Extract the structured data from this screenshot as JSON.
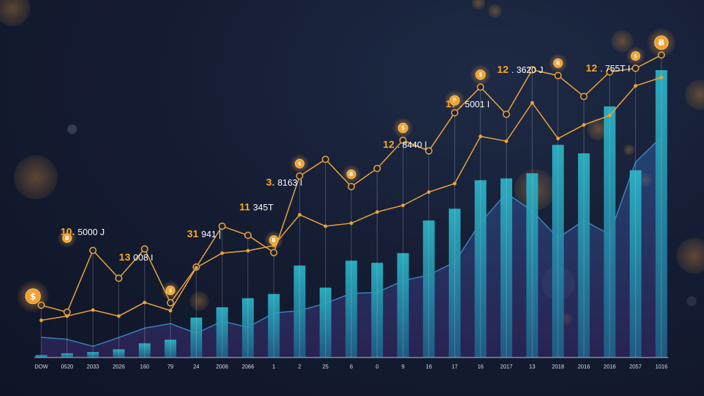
{
  "colors": {
    "background": "#141c31",
    "bar_top": "#2bb6c8",
    "bar_bottom": "#1f5f86",
    "line": "#e8a33a",
    "coin": "#f4a02a",
    "area_line": "#3d8fd0",
    "baseline": "#9aa3b5",
    "label_number": "#f6a623",
    "label_text": "#ffffff"
  },
  "icons": [
    "dollar-coin-icon",
    "bitcoin-coin-icon"
  ],
  "chart_data": {
    "type": "bar",
    "title": "",
    "xlabel": "",
    "ylabel": "",
    "grid": false,
    "legend": "none",
    "categories": [
      "DOW",
      "0520",
      "2033",
      "2026",
      "160",
      "79",
      "24",
      "2006",
      "2066",
      "1",
      "2",
      "25",
      "6",
      "0",
      "9",
      "16",
      "17",
      "16",
      "2017",
      "13",
      "2018",
      "2016",
      "2016",
      "2057",
      "1016"
    ],
    "ylim": [
      0,
      100
    ],
    "series": [
      {
        "type": "bar",
        "values": [
          0.8,
          1.4,
          1.8,
          2.7,
          4.7,
          5.9,
          13.2,
          16.6,
          19.6,
          21.0,
          30.4,
          23.1,
          32.0,
          31.3,
          34.5,
          45.3,
          49.2,
          58.6,
          59.2,
          60.9,
          70.3,
          67.5,
          83.0,
          61.9,
          95.0
        ]
      },
      {
        "type": "area",
        "values": [
          6.7,
          6.0,
          3.7,
          6.6,
          9.7,
          11.2,
          8.0,
          12.0,
          10.0,
          14.7,
          15.5,
          17.9,
          21.2,
          21.5,
          25.4,
          27.3,
          31.5,
          44.6,
          54.3,
          48.5,
          39.5,
          45.3,
          40.6,
          64.6,
          72.9
        ]
      },
      {
        "type": "line",
        "values": [
          17.3,
          15.0,
          35.4,
          26.2,
          35.9,
          18.1,
          29.9,
          43.4,
          40.4,
          34.7,
          60.0,
          65.5,
          56.5,
          62.5,
          71.8,
          68.3,
          80.9,
          89.4,
          80.4,
          95.1,
          93.2,
          86.3,
          94.4,
          95.6,
          100
        ]
      },
      {
        "type": "line",
        "values": [
          12.3,
          13.7,
          15.7,
          13.7,
          18.2,
          15.5,
          29.7,
          34.5,
          35.3,
          37.0,
          47.2,
          43.4,
          44.4,
          48.1,
          50.3,
          54.7,
          57.5,
          73.1,
          71.5,
          84.2,
          72.4,
          76.9,
          80.0,
          89.8,
          92.6
        ]
      }
    ],
    "annotations": [
      {
        "category": "0520",
        "number": "10.",
        "text": "5000 J"
      },
      {
        "category": "160",
        "number": "13",
        "text": "008 I"
      },
      {
        "category": "2006",
        "number": "31",
        "text": "941 |"
      },
      {
        "category": "2",
        "number": "11",
        "text": "345T"
      },
      {
        "category": "25",
        "number": "3.",
        "text": "8163 I"
      },
      {
        "category": "16",
        "number": "12",
        "text": ". 8440 |"
      },
      {
        "category": "16",
        "number": "17",
        "text": ". 5001 I"
      },
      {
        "category": "13",
        "number": "12",
        "text": ". 3620 J"
      },
      {
        "category": "2057",
        "number": "12",
        "text": ". 755T I"
      }
    ]
  }
}
